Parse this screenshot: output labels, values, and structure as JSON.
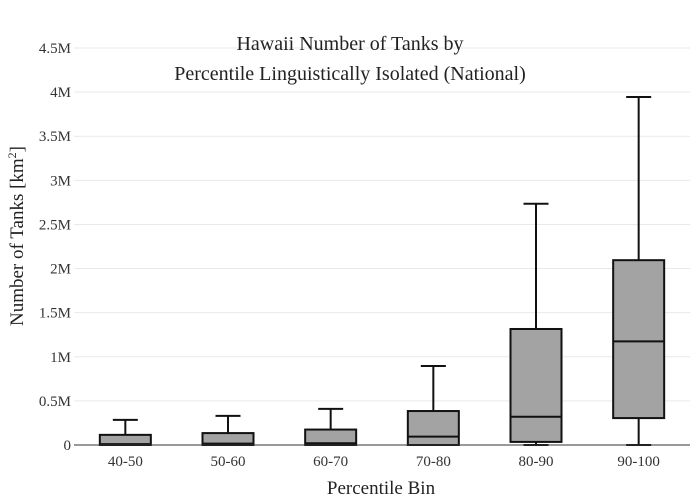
{
  "chart_data": {
    "type": "box",
    "title_line1": "Hawaii Number of Tanks by",
    "title_line2": "Percentile Linguistically Isolated (National)",
    "xlabel": "Percentile Bin",
    "ylabel_main": "Number of Tanks  [km",
    "ylabel_sup": "2",
    "ylabel_end": "]",
    "ylim": [
      0,
      4500000
    ],
    "yticks": [
      {
        "value": 0,
        "label": "0"
      },
      {
        "value": 500000,
        "label": "0.5M"
      },
      {
        "value": 1000000,
        "label": "1M"
      },
      {
        "value": 1500000,
        "label": "1.5M"
      },
      {
        "value": 2000000,
        "label": "2M"
      },
      {
        "value": 2500000,
        "label": "2.5M"
      },
      {
        "value": 3000000,
        "label": "3M"
      },
      {
        "value": 3500000,
        "label": "3.5M"
      },
      {
        "value": 4000000,
        "label": "4M"
      },
      {
        "value": 4500000,
        "label": "4.5M"
      }
    ],
    "grid": true,
    "box_color": "#a3a3a3",
    "categories": [
      "40-50",
      "50-60",
      "60-70",
      "70-80",
      "80-90",
      "90-100"
    ],
    "boxes": [
      {
        "min": 0,
        "q1": 0,
        "median": 10000,
        "q3": 115000,
        "max": 285000
      },
      {
        "min": 0,
        "q1": 0,
        "median": 15000,
        "q3": 135000,
        "max": 330000
      },
      {
        "min": 0,
        "q1": 0,
        "median": 20000,
        "q3": 175000,
        "max": 410000
      },
      {
        "min": 0,
        "q1": 0,
        "median": 95000,
        "q3": 385000,
        "max": 895000
      },
      {
        "min": 0,
        "q1": 35000,
        "median": 320000,
        "q3": 1315000,
        "max": 2735000
      },
      {
        "min": 0,
        "q1": 305000,
        "median": 1175000,
        "q3": 2095000,
        "max": 3945000
      }
    ]
  }
}
